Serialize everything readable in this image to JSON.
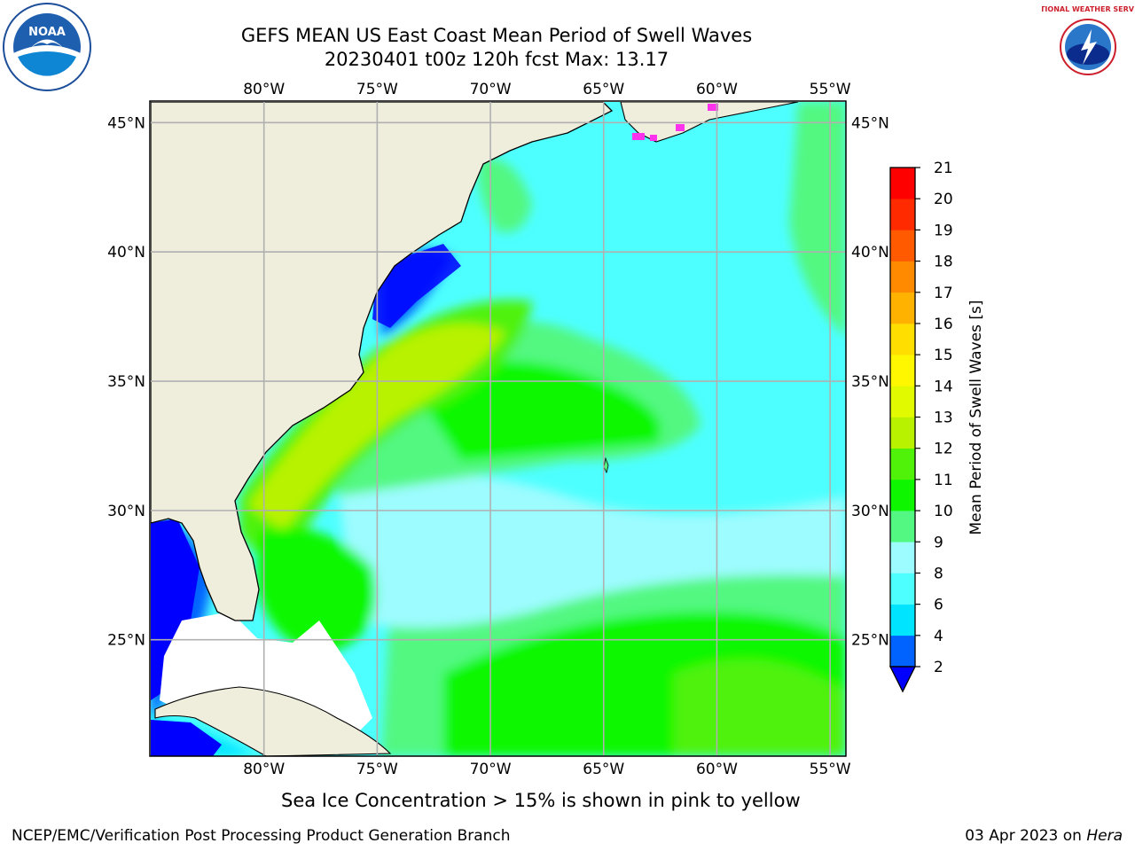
{
  "header": {
    "title_line1": "GEFS MEAN US East Coast Mean Period of Swell Waves",
    "title_line2": "20230401 t00z 120h fcst   Max: 13.17"
  },
  "logos": {
    "left": "noaa-logo",
    "left_text": "NOAA",
    "right": "nws-logo",
    "right_text": "NATIONAL WEATHER SERVICE"
  },
  "map": {
    "lon_ticks": [
      "80°W",
      "75°W",
      "70°W",
      "65°W",
      "60°W",
      "55°W"
    ],
    "lat_ticks": [
      "45°N",
      "40°N",
      "35°N",
      "30°N",
      "25°N"
    ],
    "lon_values": [
      -80,
      -75,
      -70,
      -65,
      -60,
      -55
    ],
    "lat_values": [
      45,
      40,
      35,
      30,
      25
    ],
    "lon_range": [
      -85,
      -54.3
    ],
    "lat_range": [
      20.5,
      45.8
    ],
    "land_color": "#efeddc"
  },
  "colorbar": {
    "label": "Mean Period of Swell Waves [s]",
    "ticks": [
      "2",
      "4",
      "6",
      "8",
      "9",
      "10",
      "11",
      "12",
      "13",
      "14",
      "15",
      "16",
      "17",
      "18",
      "19",
      "20",
      "21"
    ],
    "colors": [
      "#0063ff",
      "#00e4ff",
      "#4dffff",
      "#9dfcff",
      "#52f881",
      "#0ff700",
      "#50f20a",
      "#b8f200",
      "#e2fa00",
      "#fff700",
      "#ffde00",
      "#ffb300",
      "#ff8a00",
      "#ff5a00",
      "#ff2a00",
      "#ff0000"
    ],
    "under_color": "#0000ff"
  },
  "notes": {
    "sea_ice": "Sea Ice Concentration > 15% is shown in pink to yellow"
  },
  "footer": {
    "left": "NCEP/EMC/Verification Post Processing Product Generation Branch",
    "date": "03 Apr 2023 on ",
    "machine": "Hera"
  }
}
